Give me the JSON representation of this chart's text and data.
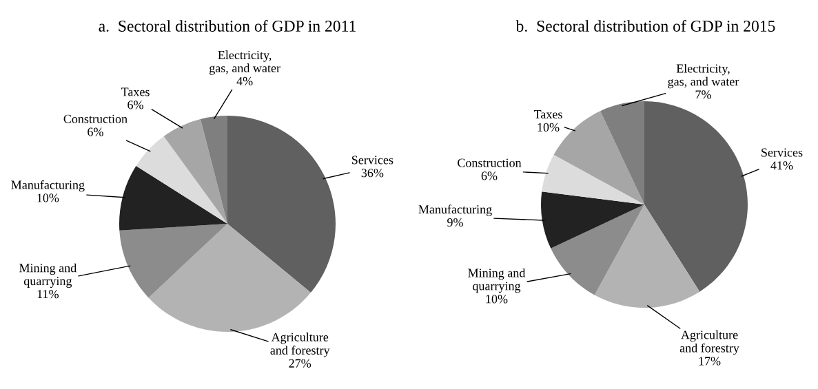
{
  "chart_data": [
    {
      "type": "pie",
      "title": "a.  Sectoral distribution of GDP in 2011",
      "categories": [
        "Services",
        "Agriculture\nand forestry",
        "Mining and\nquarrying",
        "Manufacturing",
        "Construction",
        "Taxes",
        "Electricity,\ngas, and water"
      ],
      "values": [
        36,
        27,
        11,
        10,
        6,
        6,
        4
      ],
      "value_labels": [
        "36%",
        "27%",
        "11%",
        "10%",
        "6%",
        "6%",
        "4%"
      ],
      "colors": [
        "#606060",
        "#b3b3b3",
        "#8c8c8c",
        "#222222",
        "#dcdcdc",
        "#a6a6a6",
        "#7f7f7f"
      ]
    },
    {
      "type": "pie",
      "title": "b.  Sectoral distribution of GDP in 2015",
      "categories": [
        "Services",
        "Agriculture\nand forestry",
        "Mining and\nquarrying",
        "Manufacturing",
        "Construction",
        "Taxes",
        "Electricity,\ngas, and water"
      ],
      "values": [
        41,
        17,
        10,
        9,
        6,
        10,
        7
      ],
      "value_labels": [
        "41%",
        "17%",
        "10%",
        "9%",
        "6%",
        "10%",
        "7%"
      ],
      "colors": [
        "#606060",
        "#b3b3b3",
        "#8c8c8c",
        "#222222",
        "#dcdcdc",
        "#a6a6a6",
        "#7f7f7f"
      ]
    }
  ]
}
